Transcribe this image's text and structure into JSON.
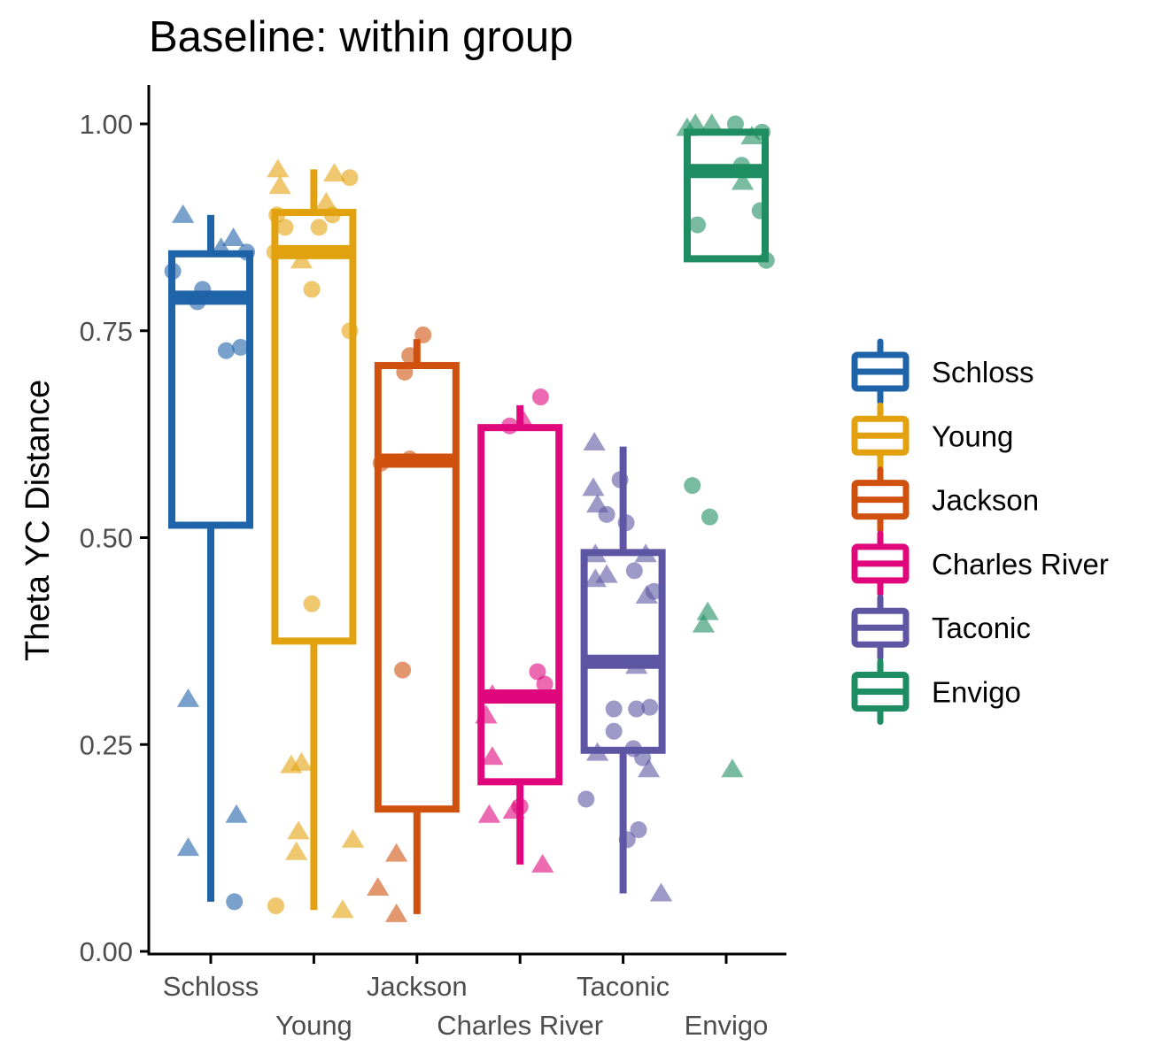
{
  "chart_data": {
    "type": "box",
    "title": "Baseline: within group",
    "xlabel": "",
    "ylabel": "Theta YC Distance",
    "ylim": [
      0,
      1.0
    ],
    "yticks": [
      0.0,
      0.25,
      0.5,
      0.75,
      1.0
    ],
    "ytick_labels": [
      "0.00",
      "0.25",
      "0.50",
      "0.75",
      "1.00"
    ],
    "categories": [
      "Schloss",
      "Young",
      "Jackson",
      "Charles River",
      "Taconic",
      "Envigo"
    ],
    "grid": false,
    "legend_position": "right",
    "series": [
      {
        "name": "Schloss",
        "color": "#1F63A8",
        "box": {
          "whisker_low": 0.06,
          "q1": 0.515,
          "median": 0.79,
          "q3": 0.843,
          "whisker_high": 0.89
        },
        "points": [
          {
            "x": -0.37,
            "y": 0.822,
            "shape": "circle"
          },
          {
            "x": -0.08,
            "y": 0.8,
            "shape": "circle"
          },
          {
            "x": -0.13,
            "y": 0.785,
            "shape": "circle"
          },
          {
            "x": 0.15,
            "y": 0.726,
            "shape": "circle"
          },
          {
            "x": 0.29,
            "y": 0.73,
            "shape": "circle"
          },
          {
            "x": 0.35,
            "y": 0.845,
            "shape": "circle"
          },
          {
            "x": 0.23,
            "y": 0.06,
            "shape": "circle"
          },
          {
            "x": -0.27,
            "y": 0.89,
            "shape": "triangle"
          },
          {
            "x": 0.1,
            "y": 0.85,
            "shape": "triangle"
          },
          {
            "x": 0.22,
            "y": 0.862,
            "shape": "triangle"
          },
          {
            "x": -0.22,
            "y": 0.305,
            "shape": "triangle"
          },
          {
            "x": 0.25,
            "y": 0.165,
            "shape": "triangle"
          },
          {
            "x": -0.22,
            "y": 0.125,
            "shape": "triangle"
          }
        ]
      },
      {
        "name": "Young",
        "color": "#E2A20F",
        "box": {
          "whisker_low": 0.05,
          "q1": 0.375,
          "median": 0.845,
          "q3": 0.893,
          "whisker_high": 0.945
        },
        "points": [
          {
            "x": -0.38,
            "y": 0.845,
            "shape": "circle"
          },
          {
            "x": -0.28,
            "y": 0.875,
            "shape": "circle"
          },
          {
            "x": -0.36,
            "y": 0.89,
            "shape": "circle"
          },
          {
            "x": 0.05,
            "y": 0.875,
            "shape": "circle"
          },
          {
            "x": -0.02,
            "y": 0.8,
            "shape": "circle"
          },
          {
            "x": 0.18,
            "y": 0.89,
            "shape": "circle"
          },
          {
            "x": 0.35,
            "y": 0.935,
            "shape": "circle"
          },
          {
            "x": 0.35,
            "y": 0.75,
            "shape": "circle"
          },
          {
            "x": -0.02,
            "y": 0.42,
            "shape": "circle"
          },
          {
            "x": -0.37,
            "y": 0.055,
            "shape": "circle"
          },
          {
            "x": -0.35,
            "y": 0.945,
            "shape": "triangle"
          },
          {
            "x": -0.33,
            "y": 0.925,
            "shape": "triangle"
          },
          {
            "x": 0.2,
            "y": 0.94,
            "shape": "triangle"
          },
          {
            "x": 0.12,
            "y": 0.905,
            "shape": "triangle"
          },
          {
            "x": -0.12,
            "y": 0.835,
            "shape": "triangle"
          },
          {
            "x": -0.22,
            "y": 0.225,
            "shape": "triangle"
          },
          {
            "x": -0.12,
            "y": 0.228,
            "shape": "triangle"
          },
          {
            "x": -0.15,
            "y": 0.145,
            "shape": "triangle"
          },
          {
            "x": -0.17,
            "y": 0.12,
            "shape": "triangle"
          },
          {
            "x": 0.38,
            "y": 0.135,
            "shape": "triangle"
          },
          {
            "x": 0.28,
            "y": 0.05,
            "shape": "triangle"
          }
        ]
      },
      {
        "name": "Jackson",
        "color": "#D0510E",
        "box": {
          "whisker_low": 0.045,
          "q1": 0.172,
          "median": 0.593,
          "q3": 0.708,
          "whisker_high": 0.74
        },
        "points": [
          {
            "x": 0.06,
            "y": 0.745,
            "shape": "circle"
          },
          {
            "x": -0.07,
            "y": 0.72,
            "shape": "circle"
          },
          {
            "x": -0.12,
            "y": 0.7,
            "shape": "circle"
          },
          {
            "x": -0.35,
            "y": 0.59,
            "shape": "circle"
          },
          {
            "x": -0.07,
            "y": 0.595,
            "shape": "circle"
          },
          {
            "x": -0.14,
            "y": 0.34,
            "shape": "circle"
          },
          {
            "x": -0.2,
            "y": 0.118,
            "shape": "triangle"
          },
          {
            "x": -0.38,
            "y": 0.077,
            "shape": "triangle"
          },
          {
            "x": -0.2,
            "y": 0.045,
            "shape": "triangle"
          }
        ]
      },
      {
        "name": "Charles River",
        "color": "#E0077D",
        "box": {
          "whisker_low": 0.105,
          "q1": 0.205,
          "median": 0.308,
          "q3": 0.633,
          "whisker_high": 0.66
        },
        "points": [
          {
            "x": 0.2,
            "y": 0.67,
            "shape": "circle"
          },
          {
            "x": -0.1,
            "y": 0.635,
            "shape": "circle"
          },
          {
            "x": 0.17,
            "y": 0.338,
            "shape": "circle"
          },
          {
            "x": 0.24,
            "y": 0.323,
            "shape": "circle"
          },
          {
            "x": 0.0,
            "y": 0.175,
            "shape": "circle"
          },
          {
            "x": 0.04,
            "y": 0.64,
            "shape": "triangle"
          },
          {
            "x": -0.33,
            "y": 0.285,
            "shape": "triangle"
          },
          {
            "x": -0.27,
            "y": 0.31,
            "shape": "triangle"
          },
          {
            "x": -0.27,
            "y": 0.235,
            "shape": "triangle"
          },
          {
            "x": -0.3,
            "y": 0.165,
            "shape": "triangle"
          },
          {
            "x": -0.06,
            "y": 0.17,
            "shape": "triangle"
          },
          {
            "x": 0.22,
            "y": 0.105,
            "shape": "triangle"
          }
        ]
      },
      {
        "name": "Taconic",
        "color": "#5E56A3",
        "box": {
          "whisker_low": 0.07,
          "q1": 0.243,
          "median": 0.35,
          "q3": 0.482,
          "whisker_high": 0.61
        },
        "points": [
          {
            "x": -0.03,
            "y": 0.57,
            "shape": "circle"
          },
          {
            "x": -0.16,
            "y": 0.528,
            "shape": "circle"
          },
          {
            "x": 0.03,
            "y": 0.518,
            "shape": "circle"
          },
          {
            "x": 0.11,
            "y": 0.46,
            "shape": "circle"
          },
          {
            "x": 0.3,
            "y": 0.435,
            "shape": "circle"
          },
          {
            "x": -0.09,
            "y": 0.293,
            "shape": "circle"
          },
          {
            "x": 0.13,
            "y": 0.293,
            "shape": "circle"
          },
          {
            "x": 0.26,
            "y": 0.295,
            "shape": "circle"
          },
          {
            "x": -0.09,
            "y": 0.266,
            "shape": "circle"
          },
          {
            "x": 0.1,
            "y": 0.245,
            "shape": "circle"
          },
          {
            "x": 0.19,
            "y": 0.234,
            "shape": "circle"
          },
          {
            "x": -0.36,
            "y": 0.184,
            "shape": "circle"
          },
          {
            "x": 0.15,
            "y": 0.147,
            "shape": "circle"
          },
          {
            "x": 0.04,
            "y": 0.135,
            "shape": "circle"
          },
          {
            "x": -0.28,
            "y": 0.615,
            "shape": "triangle"
          },
          {
            "x": -0.29,
            "y": 0.56,
            "shape": "triangle"
          },
          {
            "x": -0.25,
            "y": 0.54,
            "shape": "triangle"
          },
          {
            "x": -0.27,
            "y": 0.48,
            "shape": "triangle"
          },
          {
            "x": 0.22,
            "y": 0.48,
            "shape": "triangle"
          },
          {
            "x": -0.27,
            "y": 0.45,
            "shape": "triangle"
          },
          {
            "x": -0.16,
            "y": 0.455,
            "shape": "triangle"
          },
          {
            "x": 0.23,
            "y": 0.43,
            "shape": "triangle"
          },
          {
            "x": 0.13,
            "y": 0.345,
            "shape": "triangle"
          },
          {
            "x": -0.25,
            "y": 0.24,
            "shape": "triangle"
          },
          {
            "x": 0.25,
            "y": 0.22,
            "shape": "triangle"
          },
          {
            "x": 0.37,
            "y": 0.07,
            "shape": "triangle"
          }
        ]
      },
      {
        "name": "Envigo",
        "color": "#1E8D63",
        "box": {
          "whisker_low": 0.837,
          "q1": 0.837,
          "median": 0.943,
          "q3": 0.99,
          "whisker_high": 0.99
        },
        "points": [
          {
            "x": 0.09,
            "y": 1.0,
            "shape": "circle"
          },
          {
            "x": 0.35,
            "y": 0.99,
            "shape": "circle"
          },
          {
            "x": 0.15,
            "y": 0.95,
            "shape": "circle"
          },
          {
            "x": 0.33,
            "y": 0.895,
            "shape": "circle"
          },
          {
            "x": -0.28,
            "y": 0.878,
            "shape": "circle"
          },
          {
            "x": 0.39,
            "y": 0.835,
            "shape": "circle"
          },
          {
            "x": -0.33,
            "y": 0.563,
            "shape": "circle"
          },
          {
            "x": -0.16,
            "y": 0.525,
            "shape": "circle"
          },
          {
            "x": -0.38,
            "y": 0.995,
            "shape": "triangle"
          },
          {
            "x": -0.3,
            "y": 1.0,
            "shape": "triangle"
          },
          {
            "x": -0.14,
            "y": 1.0,
            "shape": "triangle"
          },
          {
            "x": 0.25,
            "y": 0.985,
            "shape": "triangle"
          },
          {
            "x": 0.16,
            "y": 0.93,
            "shape": "triangle"
          },
          {
            "x": -0.18,
            "y": 0.41,
            "shape": "triangle"
          },
          {
            "x": -0.22,
            "y": 0.395,
            "shape": "triangle"
          },
          {
            "x": 0.06,
            "y": 0.22,
            "shape": "triangle"
          }
        ]
      }
    ]
  }
}
